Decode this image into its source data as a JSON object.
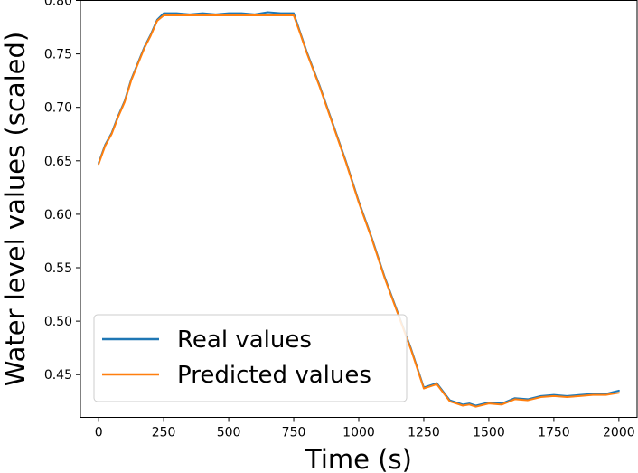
{
  "chart_data": {
    "type": "line",
    "title": "",
    "xlabel": "Time (s)",
    "ylabel": "Water level values (scaled)",
    "xlim": [
      -70,
      2070
    ],
    "ylim": [
      0.41,
      0.8
    ],
    "xticks": [
      0,
      250,
      500,
      750,
      1000,
      1250,
      1500,
      1750,
      2000
    ],
    "xtick_labels": [
      "0",
      "250",
      "500",
      "750",
      "1000",
      "1250",
      "1500",
      "1750",
      "2000"
    ],
    "yticks": [
      0.45,
      0.5,
      0.55,
      0.6,
      0.65,
      0.7,
      0.75,
      0.8
    ],
    "ytick_labels": [
      "0.45",
      "0.50",
      "0.55",
      "0.60",
      "0.65",
      "0.70",
      "0.75",
      "0.80"
    ],
    "grid": false,
    "legend_position": "lower-left",
    "series": [
      {
        "name": "Real values",
        "color": "#1f77b4",
        "x": [
          0,
          25,
          50,
          75,
          100,
          125,
          150,
          175,
          200,
          225,
          250,
          300,
          350,
          400,
          450,
          500,
          550,
          600,
          650,
          700,
          750,
          775,
          800,
          850,
          900,
          950,
          1000,
          1050,
          1100,
          1150,
          1200,
          1250,
          1300,
          1350,
          1400,
          1425,
          1450,
          1500,
          1550,
          1600,
          1650,
          1700,
          1750,
          1800,
          1850,
          1900,
          1950,
          2000
        ],
        "y": [
          0.648,
          0.665,
          0.676,
          0.692,
          0.706,
          0.726,
          0.741,
          0.756,
          0.768,
          0.782,
          0.788,
          0.788,
          0.787,
          0.788,
          0.787,
          0.788,
          0.788,
          0.787,
          0.789,
          0.788,
          0.788,
          0.77,
          0.752,
          0.72,
          0.685,
          0.65,
          0.612,
          0.578,
          0.541,
          0.508,
          0.475,
          0.438,
          0.442,
          0.426,
          0.422,
          0.423,
          0.421,
          0.424,
          0.423,
          0.428,
          0.427,
          0.43,
          0.431,
          0.43,
          0.431,
          0.432,
          0.432,
          0.435
        ]
      },
      {
        "name": "Predicted values",
        "color": "#ff7f0e",
        "x": [
          0,
          25,
          50,
          75,
          100,
          125,
          150,
          175,
          200,
          225,
          250,
          300,
          350,
          400,
          450,
          500,
          550,
          600,
          650,
          700,
          750,
          775,
          800,
          850,
          900,
          950,
          1000,
          1050,
          1100,
          1150,
          1200,
          1250,
          1300,
          1350,
          1400,
          1425,
          1450,
          1500,
          1550,
          1600,
          1650,
          1700,
          1750,
          1800,
          1850,
          1900,
          1950,
          2000
        ],
        "y": [
          0.647,
          0.664,
          0.675,
          0.691,
          0.705,
          0.725,
          0.74,
          0.755,
          0.767,
          0.781,
          0.786,
          0.786,
          0.786,
          0.786,
          0.786,
          0.786,
          0.786,
          0.786,
          0.786,
          0.786,
          0.786,
          0.769,
          0.751,
          0.719,
          0.684,
          0.649,
          0.611,
          0.577,
          0.54,
          0.507,
          0.474,
          0.437,
          0.441,
          0.425,
          0.421,
          0.422,
          0.42,
          0.423,
          0.422,
          0.427,
          0.426,
          0.429,
          0.43,
          0.429,
          0.43,
          0.431,
          0.431,
          0.433
        ]
      }
    ]
  }
}
